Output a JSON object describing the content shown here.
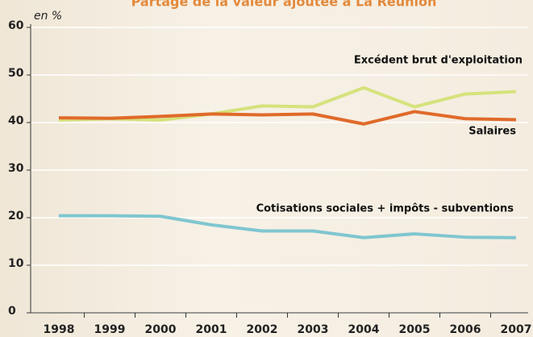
{
  "chart_data": {
    "type": "line",
    "title": "Partage de la valeur ajoutée à La Réunion",
    "y_label": "en %",
    "x": [
      "1998",
      "1999",
      "2000",
      "2001",
      "2002",
      "2003",
      "2004",
      "2005",
      "2006",
      "2007"
    ],
    "series": [
      {
        "name": "Excédent brut d'exploitation",
        "color": "#d6e27c",
        "values": [
          40.5,
          40.8,
          40.5,
          41.8,
          43.5,
          43.3,
          47.3,
          43.3,
          46.0,
          46.5
        ]
      },
      {
        "name": "Salaires",
        "color": "#e06a2a",
        "values": [
          41.0,
          40.9,
          41.3,
          41.8,
          41.6,
          41.8,
          39.7,
          42.3,
          40.8,
          40.6
        ]
      },
      {
        "name": "Cotisations sociales + impôts - subventions",
        "color": "#7fc6d0",
        "values": [
          20.4,
          20.4,
          20.3,
          18.5,
          17.2,
          17.2,
          15.8,
          16.6,
          15.9,
          15.8
        ]
      }
    ],
    "ylim": [
      0,
      60
    ],
    "yticks": [
      0,
      10,
      20,
      30,
      40,
      50,
      60
    ],
    "grid": true
  }
}
